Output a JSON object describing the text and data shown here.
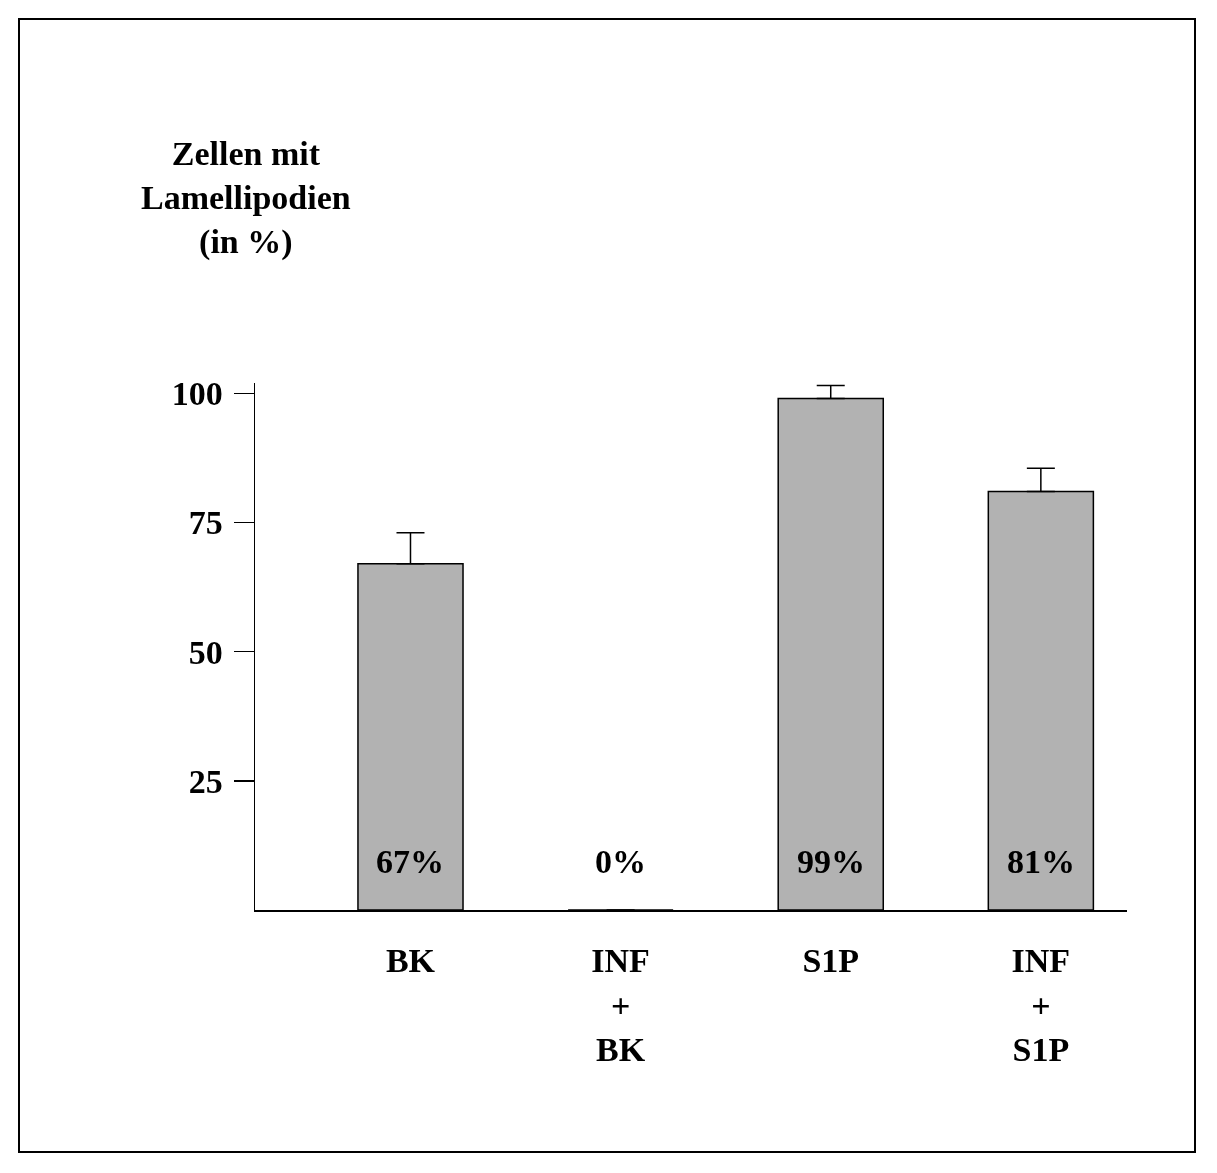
{
  "chart_data": {
    "type": "bar",
    "annotations": [
      "Zellen mit\nLamellipodien\n(in %)"
    ],
    "categories": [
      "BK",
      "INF\n+\nBK",
      "S1P",
      "INF\n+\nS1P"
    ],
    "values": [
      67,
      0,
      99,
      81
    ],
    "value_labels": [
      "67%",
      "0%",
      "99%",
      "81%"
    ],
    "errors": [
      [
        67,
        73
      ],
      null,
      [
        99,
        101.5
      ],
      [
        81,
        85.5
      ]
    ],
    "color": "#b2b2b2",
    "ylim": [
      0,
      102
    ],
    "yticks": [
      25,
      50,
      75,
      100
    ],
    "grid": false
  }
}
